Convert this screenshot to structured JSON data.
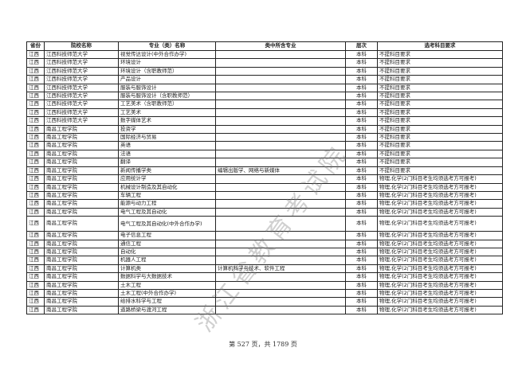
{
  "table": {
    "headers": [
      "省份",
      "院校名称",
      "专业（类）名称",
      "类中所含专业",
      "层次",
      "选考科目要求"
    ],
    "rows": [
      [
        "江西",
        "江西科技师范大学",
        "视觉传达设计(中外合作办学)",
        "",
        "本科",
        "不提科目要求"
      ],
      [
        "江西",
        "江西科技师范大学",
        "环境设计",
        "",
        "本科",
        "不提科目要求"
      ],
      [
        "江西",
        "江西科技师范大学",
        "环境设计（含职教师范）",
        "",
        "本科",
        "不提科目要求"
      ],
      [
        "江西",
        "江西科技师范大学",
        "产品设计",
        "",
        "本科",
        "不提科目要求"
      ],
      [
        "江西",
        "江西科技师范大学",
        "服装与服饰设计",
        "",
        "本科",
        "不提科目要求"
      ],
      [
        "江西",
        "江西科技师范大学",
        "服装与服饰设计（含职教师范）",
        "",
        "本科",
        "不提科目要求"
      ],
      [
        "江西",
        "江西科技师范大学",
        "工艺美术（含职教师范）",
        "",
        "本科",
        "不提科目要求"
      ],
      [
        "江西",
        "江西科技师范大学",
        "工艺美术",
        "",
        "本科",
        "不提科目要求"
      ],
      [
        "江西",
        "江西科技师范大学",
        "数字媒体艺术",
        "",
        "本科",
        "不提科目要求"
      ],
      [
        "江西",
        "南昌工程学院",
        "投资学",
        "",
        "本科",
        "不提科目要求"
      ],
      [
        "江西",
        "南昌工程学院",
        "国际经济与贸易",
        "",
        "本科",
        "不提科目要求"
      ],
      [
        "江西",
        "南昌工程学院",
        "英语",
        "",
        "本科",
        "不提科目要求"
      ],
      [
        "江西",
        "南昌工程学院",
        "法语",
        "",
        "本科",
        "不提科目要求"
      ],
      [
        "江西",
        "南昌工程学院",
        "翻译",
        "",
        "本科",
        "不提科目要求"
      ],
      [
        "江西",
        "南昌工程学院",
        "新闻传播学类",
        "编辑出版学、网络与新媒体",
        "本科",
        "不提科目要求"
      ],
      [
        "江西",
        "南昌工程学院",
        "应用统计学",
        "",
        "本科",
        "物理,化学(2门科目考生均须选考方可报考)"
      ],
      [
        "江西",
        "南昌工程学院",
        "机械设计制造及其自动化",
        "",
        "本科",
        "物理,化学(2门科目考生均须选考方可报考)"
      ],
      [
        "江西",
        "南昌工程学院",
        "车辆工程",
        "",
        "本科",
        "物理,化学(2门科目考生均须选考方可报考)"
      ],
      [
        "江西",
        "南昌工程学院",
        "能源与动力工程",
        "",
        "本科",
        "物理,化学(2门科目考生均须选考方可报考)"
      ],
      [
        "江西",
        "南昌工程学院",
        "电气工程及其自动化",
        "",
        "本科",
        "物理,化学(2门科目考生均须选考方可报考)"
      ],
      [
        "江西",
        "南昌工程学院",
        "电气工程及其自动化(中外合作办学)",
        "",
        "本科",
        "物理,化学(2门科目考生均须选考方可报考)"
      ],
      [
        "江西",
        "南昌工程学院",
        "电子信息工程",
        "",
        "本科",
        "物理,化学(2门科目考生均须选考方可报考)"
      ],
      [
        "江西",
        "南昌工程学院",
        "通信工程",
        "",
        "本科",
        "物理,化学(2门科目考生均须选考方可报考)"
      ],
      [
        "江西",
        "南昌工程学院",
        "自动化",
        "",
        "本科",
        "物理,化学(2门科目考生均须选考方可报考)"
      ],
      [
        "江西",
        "南昌工程学院",
        "机器人工程",
        "",
        "本科",
        "物理,化学(2门科目考生均须选考方可报考)"
      ],
      [
        "江西",
        "南昌工程学院",
        "计算机类",
        "计算机科学与技术、软件工程",
        "本科",
        "物理,化学(2门科目考生均须选考方可报考)"
      ],
      [
        "江西",
        "南昌工程学院",
        "数据科学与大数据技术",
        "",
        "本科",
        "物理,化学(2门科目考生均须选考方可报考)"
      ],
      [
        "江西",
        "南昌工程学院",
        "土木工程",
        "",
        "本科",
        "物理,化学(2门科目考生均须选考方可报考)"
      ],
      [
        "江西",
        "南昌工程学院",
        "土木工程(中外合作办学)",
        "",
        "本科",
        "物理,化学(2门科目考生均须选考方可报考)"
      ],
      [
        "江西",
        "南昌工程学院",
        "给排水科学与工程",
        "",
        "本科",
        "物理,化学(2门科目考生均须选考方可报考)"
      ],
      [
        "江西",
        "南昌工程学院",
        "道路桥梁与渡河工程",
        "",
        "本科",
        "物理,化学(2门科目考生均须选考方可报考)"
      ]
    ]
  },
  "watermark": "浙江省教育考试院",
  "footer": {
    "page_info": "第 527 页，共 1789 页"
  }
}
